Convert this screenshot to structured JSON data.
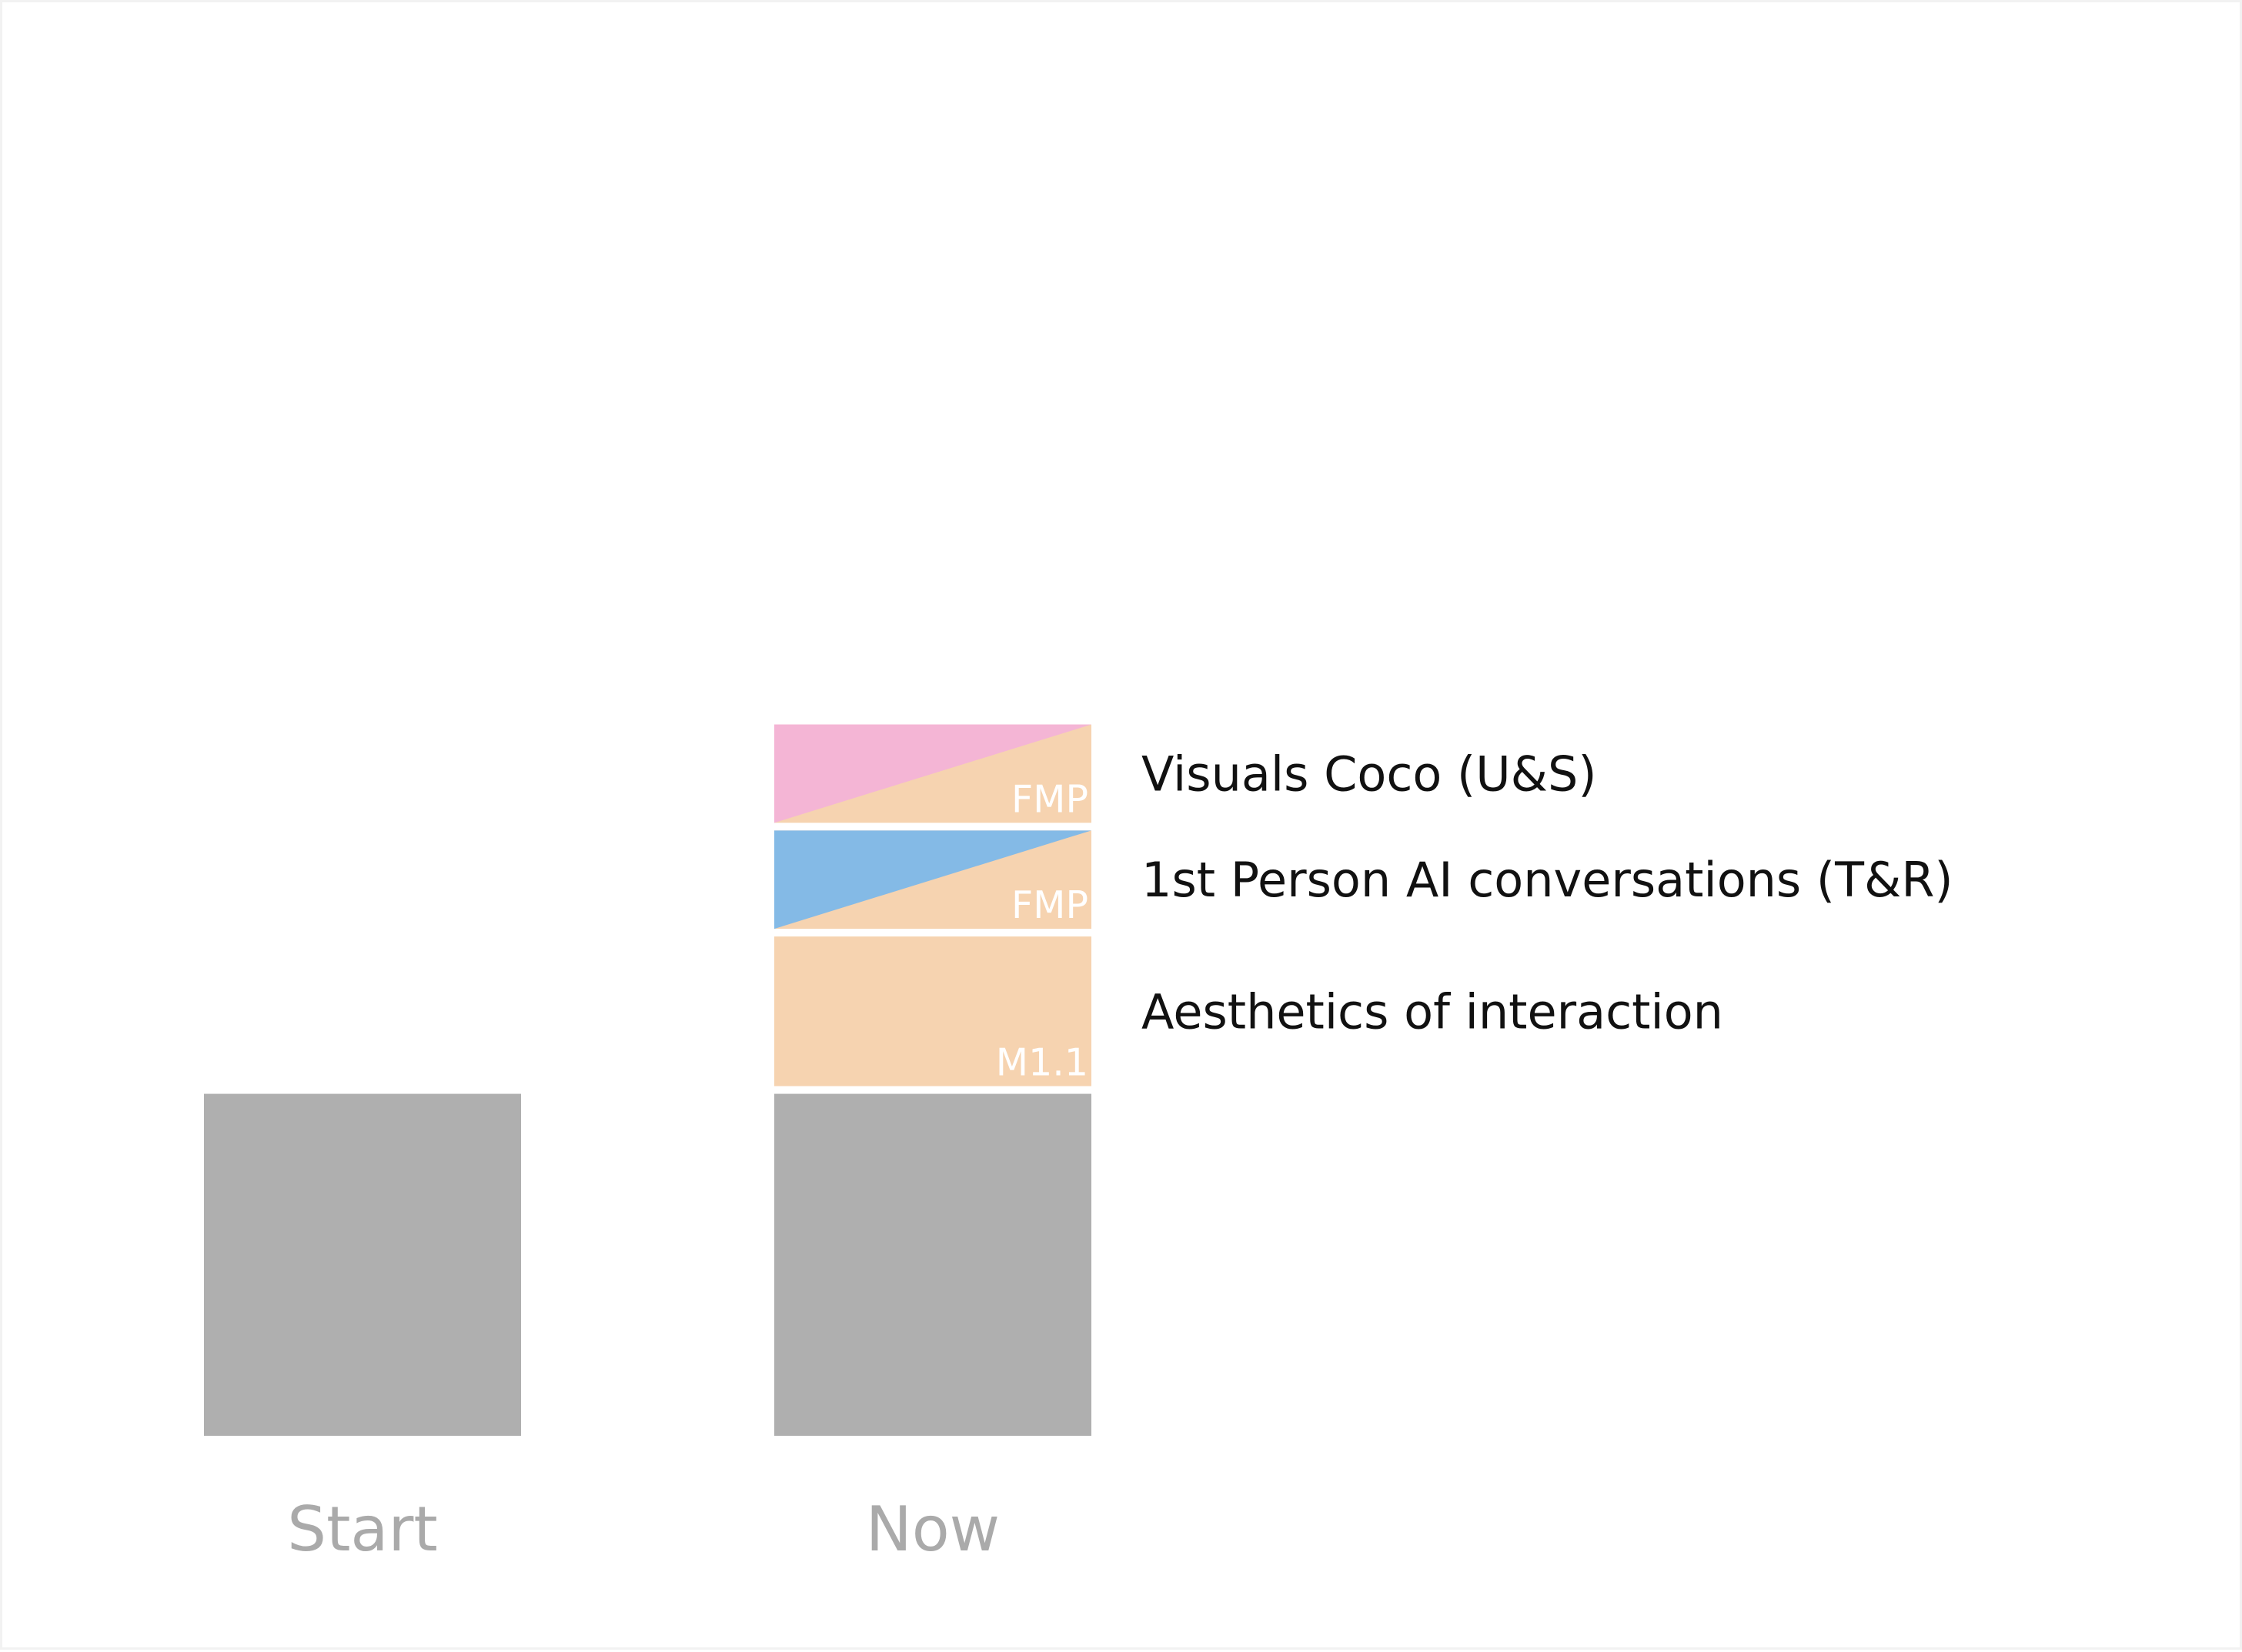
{
  "chart_data": {
    "type": "bar",
    "categories": [
      "Start",
      "Now"
    ],
    "base": {
      "values": [
        1,
        1
      ]
    },
    "segments": [
      {
        "label": "Aesthetics of interaction",
        "tag": "M1.1",
        "value": 0.46,
        "color": "#f6d3b0",
        "accent": null
      },
      {
        "label": "1st Person AI conversations (T&R)",
        "tag": "FMP",
        "value": 0.31,
        "color": "#f6d3b0",
        "accent": "#84bae6"
      },
      {
        "label": "Visuals Coco (U&S)",
        "tag": "FMP",
        "value": 0.31,
        "color": "#f6d3b0",
        "accent": "#f4b5d5"
      }
    ],
    "ylim": [
      0,
      3.6
    ],
    "grid": false,
    "legend": "right of bar labels",
    "colors": {
      "base": "#afafaf",
      "tick_text": "#aaaaaa",
      "segment_tag_text": "#ffffff",
      "label_text": "#111111"
    }
  }
}
